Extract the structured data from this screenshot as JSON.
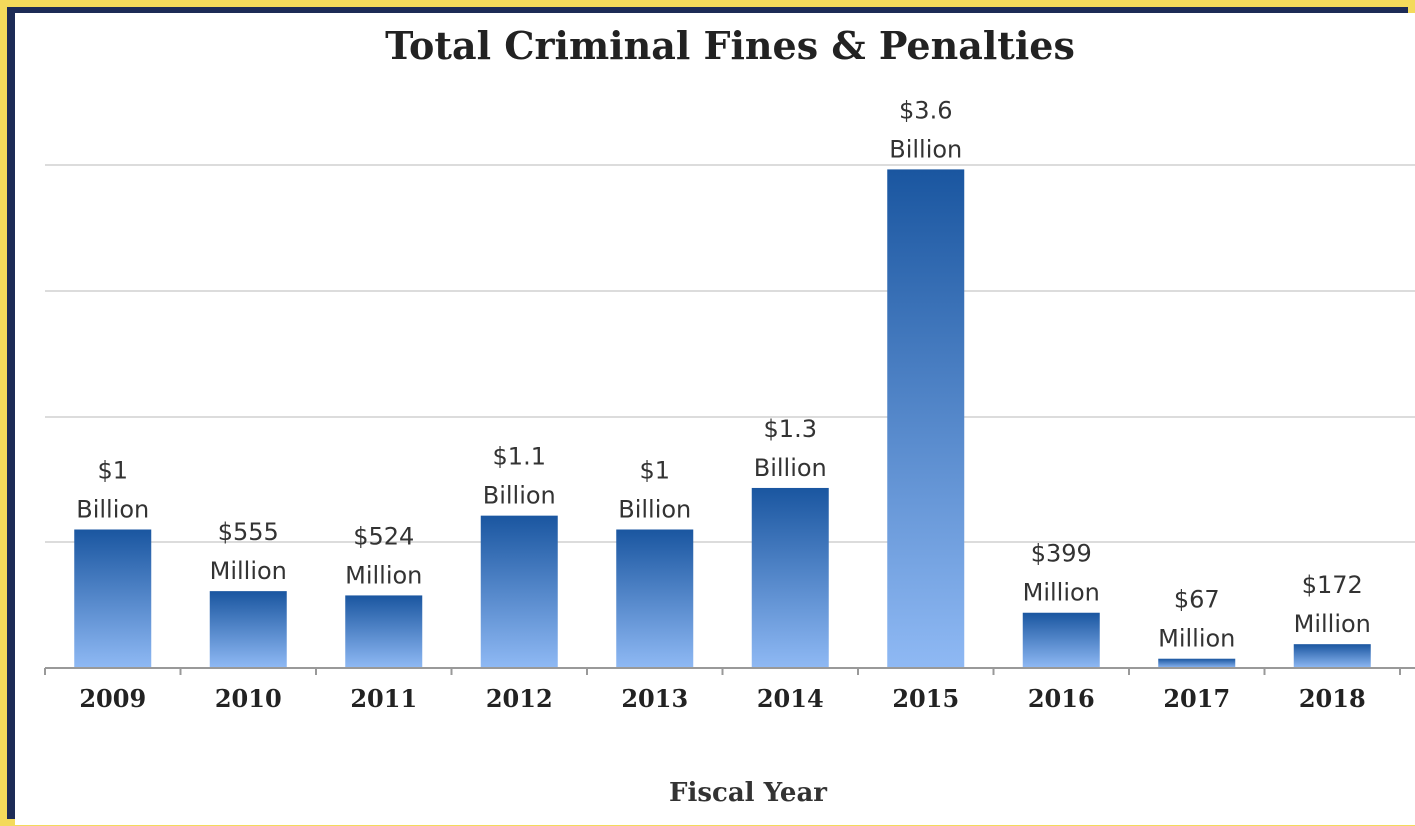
{
  "chart_data": {
    "type": "bar",
    "title": "Total Criminal Fines & Penalties",
    "xlabel": "Fiscal Year",
    "ylabel": "",
    "categories": [
      "2009",
      "2010",
      "2011",
      "2012",
      "2013",
      "2014",
      "2015",
      "2016",
      "2017",
      "2018"
    ],
    "values": [
      1,
      0.555,
      0.524,
      1.1,
      1,
      1.3,
      3.6,
      0.399,
      0.067,
      0.172
    ],
    "value_unit": "billion USD",
    "data_labels": [
      [
        "$1",
        "Billion"
      ],
      [
        "$555",
        "Million"
      ],
      [
        "$524",
        "Million"
      ],
      [
        "$1.1",
        "Billion"
      ],
      [
        "$1",
        "Billion"
      ],
      [
        "$1.3",
        "Billion"
      ],
      [
        "$3.6",
        "Billion"
      ],
      [
        "$399",
        "Million"
      ],
      [
        "$67",
        "Million"
      ],
      [
        "$172",
        "Million"
      ]
    ],
    "grid": true,
    "legend": "none",
    "colors": {
      "bar_top": "#1a56a0",
      "bar_bottom": "#8fb9f4",
      "grid": "#dcdcdc",
      "axis": "#999999"
    }
  },
  "colors": {
    "frame_border": "#f3da5b",
    "frame_bg": "#1c2b56",
    "panel_bg": "#ffffff"
  }
}
